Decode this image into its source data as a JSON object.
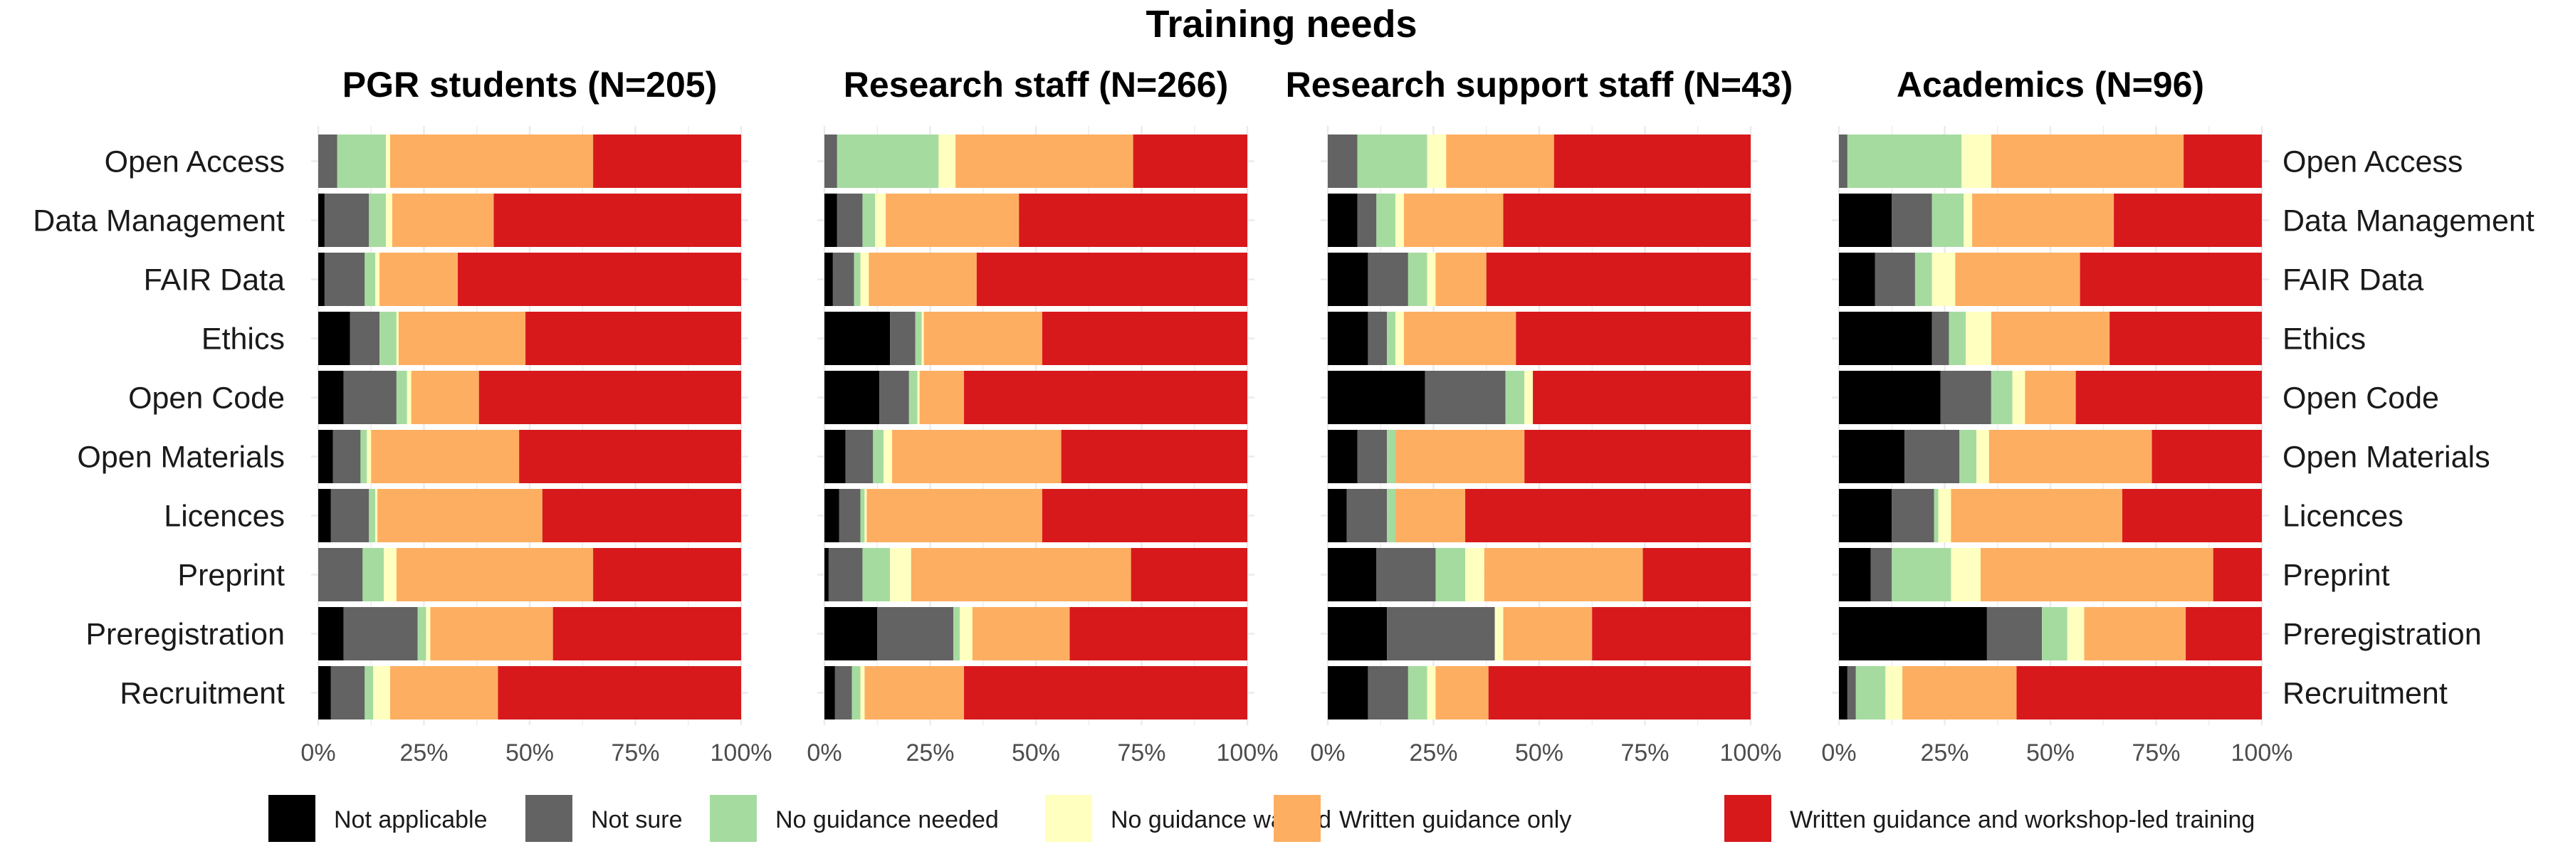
{
  "chart_data": {
    "type": "bar",
    "orientation": "horizontal",
    "stacked": "percent",
    "title": "Training needs",
    "categories": [
      "Open Access",
      "Data Management",
      "FAIR Data",
      "Ethics",
      "Open Code",
      "Open Materials",
      "Licences",
      "Preprint",
      "Preregistration",
      "Recruitment"
    ],
    "legend": {
      "position": "bottom",
      "entries": [
        {
          "name": "Not applicable",
          "color": "#000000"
        },
        {
          "name": "Not sure",
          "color": "#636363"
        },
        {
          "name": "No guidance needed",
          "color": "#a6dba0"
        },
        {
          "name": "No guidance wanted",
          "color": "#ffffbf"
        },
        {
          "name": "Written guidance only",
          "color": "#fdae61"
        },
        {
          "name": "Written guidance and workshop-led training",
          "color": "#d7191c"
        }
      ]
    },
    "xticks": [
      "0%",
      "25%",
      "50%",
      "75%",
      "100%"
    ],
    "xlim": [
      0,
      100
    ],
    "grid": true,
    "panels": [
      {
        "title": "PGR students (N=205)",
        "rows": [
          [
            0,
            4.5,
            11.5,
            1,
            48,
            35
          ],
          [
            1.5,
            10.5,
            4,
            1.5,
            24,
            58.5
          ],
          [
            1.5,
            9.5,
            2.5,
            1,
            18.5,
            67
          ],
          [
            7.5,
            7,
            4,
            0.5,
            30,
            51
          ],
          [
            6,
            12.5,
            2.5,
            1,
            16,
            62
          ],
          [
            3.5,
            6.5,
            1.5,
            1,
            35,
            52.5
          ],
          [
            3,
            9,
            1.5,
            0.5,
            39,
            47
          ],
          [
            0,
            10.5,
            5,
            3,
            46.5,
            35
          ],
          [
            6,
            17.5,
            2,
            1,
            29,
            44.5
          ],
          [
            3,
            8,
            2,
            4,
            25.5,
            57.5
          ]
        ]
      },
      {
        "title": "Research staff (N=266)",
        "rows": [
          [
            0,
            3,
            24,
            4,
            42,
            27
          ],
          [
            3,
            6,
            3,
            2.5,
            31.5,
            54
          ],
          [
            2,
            5,
            1.5,
            2,
            25.5,
            64
          ],
          [
            15.5,
            6,
            1.5,
            0.5,
            28,
            48.5
          ],
          [
            13,
            7,
            2,
            0.5,
            10.5,
            67
          ],
          [
            5,
            6.5,
            2.5,
            2,
            40,
            44
          ],
          [
            3.5,
            5,
            1,
            0.5,
            41.5,
            48.5
          ],
          [
            1,
            8,
            6.5,
            5,
            52,
            27.5
          ],
          [
            12.5,
            18,
            1.5,
            3,
            23,
            42
          ],
          [
            2.5,
            4,
            2,
            1,
            23.5,
            67
          ]
        ]
      },
      {
        "title": "Research support staff (N=43)",
        "rows": [
          [
            0,
            7,
            16.5,
            4.5,
            25.5,
            46.5
          ],
          [
            7,
            4.5,
            4.5,
            2,
            23.5,
            58.5
          ],
          [
            9.5,
            9.5,
            4.5,
            2,
            12,
            62.5
          ],
          [
            9.5,
            4.5,
            2,
            2,
            26.5,
            55.5
          ],
          [
            23,
            19,
            4.5,
            2,
            0,
            51.5
          ],
          [
            7,
            7,
            2,
            0,
            30.5,
            53.5
          ],
          [
            4.5,
            9.5,
            2,
            0,
            16.5,
            67.5
          ],
          [
            11.5,
            14,
            7,
            4.5,
            37.5,
            25.5
          ],
          [
            14,
            25.5,
            0,
            2,
            21,
            37.5
          ],
          [
            9.5,
            9.5,
            4.5,
            2,
            12.5,
            62
          ]
        ]
      },
      {
        "title": "Academics (N=96)",
        "rows": [
          [
            0,
            2,
            27,
            7,
            45.5,
            18.5
          ],
          [
            12.5,
            9.5,
            7.5,
            2,
            33.5,
            35
          ],
          [
            8.5,
            9.5,
            4,
            5.5,
            29.5,
            43
          ],
          [
            22,
            4,
            4,
            6,
            28,
            36
          ],
          [
            24,
            12,
            5,
            3,
            12,
            44
          ],
          [
            15.5,
            13,
            4,
            3,
            38.5,
            26
          ],
          [
            12.5,
            10,
            1,
            3,
            40.5,
            33
          ],
          [
            7.5,
            5,
            14,
            7,
            55,
            11.5
          ],
          [
            35,
            13,
            6,
            4,
            24,
            18
          ],
          [
            2,
            2,
            7,
            4,
            27,
            58
          ]
        ]
      }
    ]
  }
}
